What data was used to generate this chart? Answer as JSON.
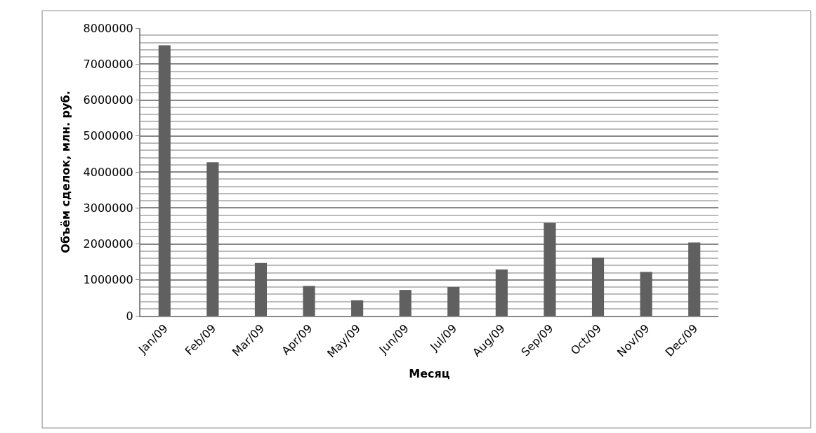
{
  "chart_data": {
    "type": "bar",
    "xlabel": "Месяц",
    "ylabel": "Объём сделок, млн. руб.",
    "categories": [
      "Jan/09",
      "Feb/09",
      "Mar/09",
      "Apr/09",
      "May/09",
      "Jun/09",
      "Jul/09",
      "Aug/09",
      "Sep/09",
      "Oct/09",
      "Nov/09",
      "Dec/09"
    ],
    "series": [
      {
        "color": "#606060",
        "values": [
          7520000,
          4270000,
          1470000,
          830000,
          430000,
          720000,
          800000,
          1290000,
          2580000,
          1620000,
          1220000,
          2040000
        ]
      }
    ],
    "ylim": [
      0,
      8000000
    ],
    "yticks": [
      0,
      1000000,
      2000000,
      3000000,
      4000000,
      5000000,
      6000000,
      7000000,
      8000000
    ],
    "grid": true
  }
}
